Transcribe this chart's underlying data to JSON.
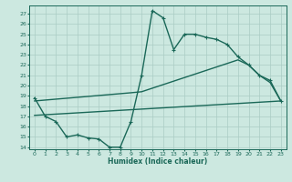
{
  "xlabel": "Humidex (Indice chaleur)",
  "bg_color": "#cce8e0",
  "grid_color": "#aaccc4",
  "line_color": "#1a6858",
  "xlim": [
    -0.5,
    23.5
  ],
  "ylim": [
    13.8,
    27.8
  ],
  "yticks": [
    14,
    15,
    16,
    17,
    18,
    19,
    20,
    21,
    22,
    23,
    24,
    25,
    26,
    27
  ],
  "xticks": [
    0,
    1,
    2,
    3,
    4,
    5,
    6,
    7,
    8,
    9,
    10,
    11,
    12,
    13,
    14,
    15,
    16,
    17,
    18,
    19,
    20,
    21,
    22,
    23
  ],
  "main_line_x": [
    0,
    1,
    2,
    3,
    4,
    5,
    6,
    7,
    8,
    9,
    10,
    11,
    12,
    13,
    14,
    15,
    16,
    17,
    18,
    19,
    20,
    21,
    22,
    23
  ],
  "main_line_y": [
    18.8,
    17.0,
    16.5,
    15.0,
    15.2,
    14.9,
    14.8,
    14.0,
    14.0,
    16.5,
    21.0,
    27.3,
    26.6,
    23.5,
    25.0,
    25.0,
    24.7,
    24.5,
    24.0,
    22.8,
    22.0,
    21.0,
    20.5,
    18.5
  ],
  "upper_line_x": [
    0,
    9,
    10,
    19,
    20,
    21,
    22,
    23
  ],
  "upper_line_y": [
    18.5,
    19.3,
    19.4,
    22.5,
    22.0,
    21.0,
    20.3,
    18.5
  ],
  "lower_line_x": [
    0,
    23
  ],
  "lower_line_y": [
    17.1,
    18.5
  ],
  "marker_size": 2.5,
  "line_width": 1.0
}
